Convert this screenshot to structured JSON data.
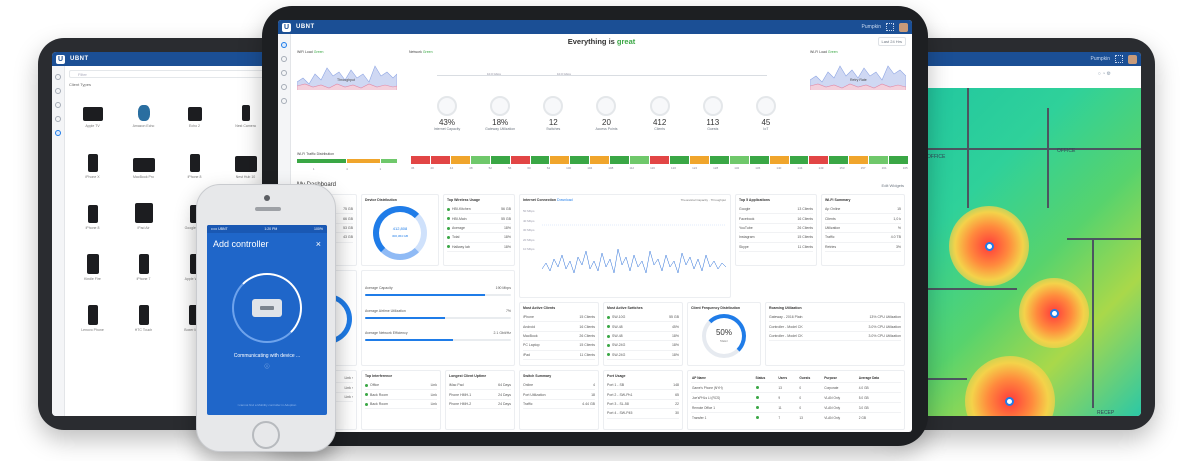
{
  "app": {
    "brand": "UBNT",
    "user": "Pumpkin"
  },
  "center": {
    "headline_prefix": "Everything is ",
    "headline_status": "great",
    "time_range": "Last 24 Hrs",
    "mini_charts": [
      {
        "label": "WiFi Load",
        "status": "Green",
        "series": "Throughput",
        "sub": [
          "Latency",
          "Loss"
        ]
      },
      {
        "label": "Network",
        "status": "Green"
      },
      {
        "label": "Wi-Fi Load",
        "status": "Green",
        "series": "Retry Rate",
        "sub": [
          "Wireless",
          "Wireless"
        ]
      }
    ],
    "stats": [
      {
        "value": "43%",
        "label": "Internet Capacity"
      },
      {
        "value": "18%",
        "label": "Gateway Utilization"
      },
      {
        "value": "12",
        "label": "Switches"
      },
      {
        "value": "20",
        "label": "Access Points"
      },
      {
        "value": "412",
        "label": "Clients"
      },
      {
        "value": "113",
        "label": "Guests"
      },
      {
        "value": "45",
        "label": "IoT"
      }
    ],
    "link_speed_left": "10.0 Gbps",
    "link_speed_right": "10.0 Gbps",
    "legend": [
      "Good",
      "Ok",
      "Poor"
    ],
    "client_dist_title": "Wi-Fi Traffic Distribution",
    "client_dist_ticks": [
      "1",
      "4",
      "1"
    ],
    "channel_ticks": [
      "36",
      "40",
      "44",
      "48",
      "52",
      "56",
      "60",
      "64",
      "100",
      "104",
      "108",
      "112",
      "116",
      "120",
      "124",
      "128",
      "132",
      "136",
      "140",
      "144",
      "149",
      "153",
      "157",
      "161",
      "165"
    ],
    "my_dashboard": "My Dashboard",
    "edit_widgets": "Edit Widgets",
    "widgets": {
      "ap_list": {
        "title": "Most Active APs",
        "rows": [
          {
            "name": "",
            "value": "75 GB"
          },
          {
            "name": "",
            "value": "66 GB"
          },
          {
            "name": "",
            "value": "53 GB"
          },
          {
            "name": "",
            "value": "43 GB"
          }
        ]
      },
      "device_distribution": {
        "title": "Device Distribution",
        "center_a": "412,808",
        "center_b": "300,364 GB"
      },
      "top_wireless": {
        "title": "Top Wireless Usage",
        "rows": [
          {
            "name": "HBI-Kitchen",
            "value": "56 GB"
          },
          {
            "name": "HBI-Main",
            "value": "55 GB"
          },
          {
            "name": "Average",
            "value": "18%"
          },
          {
            "name": "Total",
            "value": "18%"
          },
          {
            "name": "Hallway lab",
            "value": "18%"
          }
        ]
      },
      "internet": {
        "title": "Internet Connection",
        "selector": "Download",
        "legend": [
          "Theoretical Capacity",
          "Throughput"
        ],
        "y_ticks": [
          "50 Mbps",
          "40 Mbps",
          "30 Mbps",
          "20 Mbps",
          "10 Mbps"
        ]
      },
      "top_apps": {
        "title": "Top 5 Applications",
        "rows": [
          {
            "name": "Google",
            "value": "13 Clients"
          },
          {
            "name": "Facebook",
            "value": "16 Clients"
          },
          {
            "name": "YouTube",
            "value": "26 Clients"
          },
          {
            "name": "Instagram",
            "value": "15 Clients"
          },
          {
            "name": "Skype",
            "value": "11 Clients"
          }
        ]
      },
      "wifi_summary": {
        "title": "Wi-Fi Summary",
        "rows": [
          {
            "name": "Ap Online",
            "value": "15"
          },
          {
            "name": "Clients",
            "value": "1,0 k"
          },
          {
            "name": "Utilization",
            "value": "%"
          },
          {
            "name": "Traffic",
            "value": "4.0 TB"
          },
          {
            "name": "Retries",
            "value": "3%"
          }
        ]
      },
      "capacity": {
        "title": "",
        "donut_label": "Capa 9%",
        "rows": [
          {
            "name": "Average Capacity",
            "value": "190 Mbps",
            "fill": 0.82
          },
          {
            "name": "Average Airtime Utilization",
            "value": "7%",
            "fill": 0.55
          },
          {
            "name": "Average Network Efficiency",
            "value": "2.1 Gbit/Hz",
            "fill": 0.6
          }
        ]
      },
      "most_active_clients": {
        "title": "Most Active Clients",
        "rows": [
          {
            "name": "iPhone",
            "value": "15 Clients"
          },
          {
            "name": "Android",
            "value": "16 Clients"
          },
          {
            "name": "MacBook",
            "value": "26 Clients"
          },
          {
            "name": "PC Laptop",
            "value": "15 Clients"
          },
          {
            "name": "iPad",
            "value": "11 Clients"
          }
        ]
      },
      "most_active_switches": {
        "title": "Most Active Switches",
        "rows": [
          {
            "name": "SW-10G",
            "value": "55 GB"
          },
          {
            "name": "SW-48",
            "value": "45%"
          },
          {
            "name": "SW-48",
            "value": "18%"
          },
          {
            "name": "SW-24G",
            "value": "18%"
          },
          {
            "name": "SW-24G",
            "value": "18%"
          }
        ]
      },
      "client_freq": {
        "title": "Client Frequency Distribution",
        "value": "50%",
        "label": "5GHz"
      },
      "roaming": {
        "title": "Roaming Utilization",
        "rows": [
          {
            "name": "Gateway - 2016 Plain",
            "value": "13% CPU Utilization"
          },
          {
            "name": "Controller - Model CK",
            "value": "3.0% CPU Utilization"
          },
          {
            "name": "Controller - Model CK",
            "value": "3.0% CPU Utilization"
          }
        ]
      },
      "top_interference": {
        "title": "Top Interference",
        "rows": [
          {
            "name": "Office",
            "value": "Link"
          },
          {
            "name": "Back Room",
            "value": "Link"
          },
          {
            "name": "Back Room",
            "value": "Link"
          }
        ]
      },
      "longest_uptime": {
        "title": "Longest Client Uptime",
        "rows": [
          {
            "name": "iMac Pad",
            "value": "64 Days"
          },
          {
            "name": "Phone HMH-1",
            "value": "24 Days"
          },
          {
            "name": "Phone HMH-2",
            "value": "24 Days"
          }
        ]
      },
      "switch_summary": {
        "title": "Switch Summary",
        "rows": [
          {
            "name": "Online",
            "value": "4"
          },
          {
            "name": "Port Utilization",
            "value": "18"
          },
          {
            "name": "Traffic",
            "value": "4.44 GB"
          }
        ]
      },
      "port_usage": {
        "title": "Port Usage",
        "rows": [
          {
            "name": "Port 1 - SB",
            "value": "148"
          },
          {
            "name": "Port 2 - SW-Ph1",
            "value": "65"
          },
          {
            "name": "Port 3 - SL-58",
            "value": "22"
          },
          {
            "name": "Port 4 - SW-P45",
            "value": "30"
          }
        ]
      },
      "ap_table": {
        "headers": [
          "AP Name",
          "Status",
          "Users",
          "Guests",
          "Purpose",
          "Average Data"
        ],
        "rows": [
          [
            "Game's Phone (NYH)",
            "",
            "13",
            "0",
            "Corporate",
            "4.0 GB"
          ],
          [
            "Joe'sPHLs Li (RCS)",
            "",
            "9",
            "0",
            "VLAN Only",
            "5.0 GB"
          ],
          [
            "Remote Office 1",
            "",
            "11",
            "0",
            "VLAN Only",
            "3.0 GB"
          ],
          [
            "Transfer 1",
            "",
            "7",
            "13",
            "VLAN Only",
            "2 GB"
          ]
        ]
      }
    }
  },
  "left": {
    "search_placeholder": "Filter",
    "heading": "Client Types",
    "devices": [
      {
        "name": "Apple TV"
      },
      {
        "name": "Amazon Echo"
      },
      {
        "name": "Echo 2"
      },
      {
        "name": "Nest Camera"
      },
      {
        "name": "Nest Protect"
      },
      {
        "name": "iPhone X"
      },
      {
        "name": "MacBook Pro"
      },
      {
        "name": "iPhone 8"
      },
      {
        "name": "Nest Hub 10"
      },
      {
        "name": "iMac"
      },
      {
        "name": "iPhone 8"
      },
      {
        "name": "iPad Air"
      },
      {
        "name": "Google Pixel"
      },
      {
        "name": "iPhone SE"
      },
      {
        "name": ""
      },
      {
        "name": "Kindle Fire"
      },
      {
        "name": "iPhone 7"
      },
      {
        "name": "Apple Watch"
      },
      {
        "name": "Avaya IP Phone"
      },
      {
        "name": ""
      },
      {
        "name": "Lenovo Phone"
      },
      {
        "name": "HTC Touch"
      },
      {
        "name": "Boxer Mobile"
      },
      {
        "name": "LG Chromebook"
      },
      {
        "name": ""
      }
    ]
  },
  "phone": {
    "carrier": "••••• UBNT",
    "time": "1:20 PM",
    "battery": "100%",
    "title": "Add controller",
    "status": "Communicating with device ...",
    "footer": "I cannot find a Mobility controller in Adoption"
  },
  "right": {
    "user": "Pumpkin",
    "rooms": [
      "OFFICE",
      "OFFICE",
      "RECEP"
    ]
  },
  "colors": {
    "brand_blue": "#1b4f95",
    "accent": "#1f7ce8",
    "good": "#3aa745"
  }
}
